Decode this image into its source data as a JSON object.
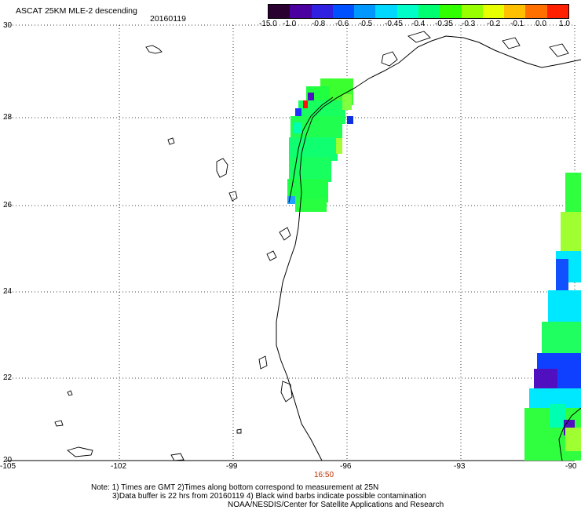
{
  "header": {
    "title": "ASCAT 25KM MLE-2 descending",
    "date": "20160119"
  },
  "colorbar": {
    "labels": [
      "-15.0",
      "-1.0",
      "-0.8",
      "-0.6",
      "-0.5",
      "-0.45",
      "-0.4",
      "-0.35",
      "-0.3",
      "-0.2",
      "-0.1",
      "0.0",
      "1.0"
    ],
    "colors": [
      "#2a0030",
      "#4b00a0",
      "#3020e0",
      "#0050ff",
      "#0098ff",
      "#00d8ff",
      "#00ffc8",
      "#00ff70",
      "#30ff00",
      "#98ff00",
      "#e8ff00",
      "#ffc000",
      "#ff7000",
      "#ff2000"
    ]
  },
  "axes": {
    "lat_labels": [
      "30",
      "28",
      "26",
      "24",
      "22",
      "20"
    ],
    "lon_labels": [
      "-105",
      "-102",
      "-99",
      "-96",
      "-93",
      "-90"
    ]
  },
  "time_label": "16:50",
  "notes": {
    "line1": "Note: 1) Times are GMT 2)Times along bottom correspond to measurement at 25N",
    "line2": "3)Data buffer is 22 hrs from 20160119 4) Black wind barbs indicate possible contamination",
    "line3": "NOAA/NESDIS/Center for Satellite Applications and Research"
  },
  "colors": {
    "swath_green": "#20ff40",
    "swath_cyan": "#00f0ff",
    "swath_blue": "#1040ff",
    "swath_purple": "#5010c0",
    "time_label": "#c03000"
  }
}
